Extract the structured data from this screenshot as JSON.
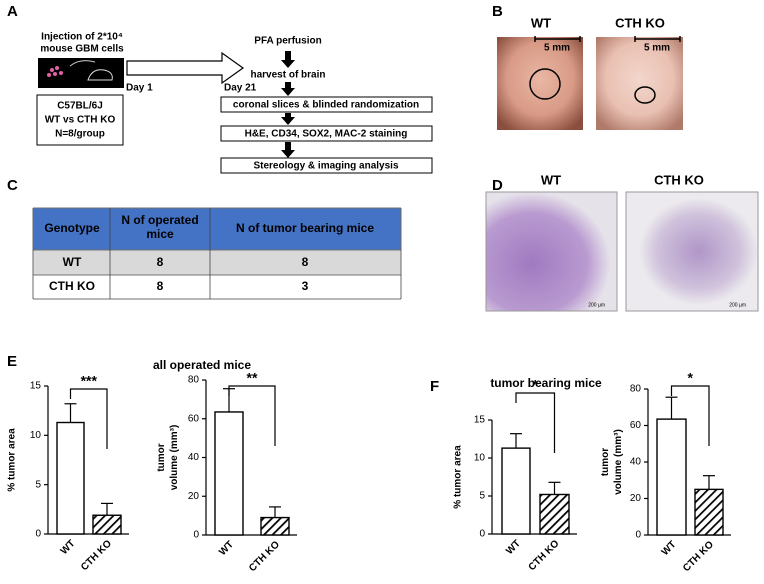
{
  "panel_labels": [
    "A",
    "B",
    "C",
    "D",
    "E",
    "F"
  ],
  "schematic": {
    "injection": [
      "Injection of 2*10⁴",
      "mouse GBM cells"
    ],
    "day_start": "Day 1",
    "cohort": [
      "C57BL/6J",
      "WT vs CTH KO",
      "N=8/group"
    ],
    "steps_top": [
      "PFA perfusion",
      "harvest of brain"
    ],
    "day_end": "Day 21",
    "steps": [
      "coronal slices & blinded randomization",
      "H&E, CD34, SOX2, MAC-2 staining",
      "Stereology & imaging analysis"
    ]
  },
  "photos": {
    "labels": [
      "WT",
      "CTH KO"
    ],
    "scale": "5 mm"
  },
  "table": {
    "header": [
      "Genotype",
      "N of operated mice",
      "N of tumor bearing mice"
    ],
    "rows": [
      [
        "WT",
        8,
        8
      ],
      [
        "CTH KO",
        8,
        3
      ]
    ]
  },
  "histology": {
    "labels": [
      "WT",
      "CTH KO"
    ],
    "scale": "200 µm"
  },
  "chart_data": [
    {
      "type": "bar",
      "title": "all operated mice",
      "ylabel": [
        "% tumor area"
      ],
      "categories": [
        "WT",
        "CTH KO"
      ],
      "values": [
        11.3,
        1.9
      ],
      "errors": [
        1.9,
        1.2
      ],
      "colors": [
        "#ffffff",
        "#000000"
      ],
      "hatched": [
        false,
        true
      ],
      "ylim": [
        0,
        15
      ],
      "yticks": [
        0,
        5,
        10,
        15
      ],
      "annotation": "***"
    },
    {
      "type": "bar",
      "ylabel": [
        "tumor",
        "volume (mm³)"
      ],
      "categories": [
        "WT",
        "CTH KO"
      ],
      "values": [
        63.5,
        9
      ],
      "errors": [
        12,
        5.5
      ],
      "colors": [
        "#ffffff",
        "#000000"
      ],
      "hatched": [
        false,
        true
      ],
      "ylim": [
        0,
        80
      ],
      "yticks": [
        0,
        20,
        40,
        60,
        80
      ],
      "annotation": "**"
    },
    {
      "type": "bar",
      "title": "tumor bearing mice",
      "ylabel": [
        "% tumor area"
      ],
      "categories": [
        "WT",
        "CTH KO"
      ],
      "values": [
        11.3,
        5.2
      ],
      "errors": [
        1.9,
        1.6
      ],
      "colors": [
        "#ffffff",
        "#000000"
      ],
      "hatched": [
        false,
        true
      ],
      "ylim": [
        0,
        15
      ],
      "yticks": [
        0,
        5,
        10,
        15
      ],
      "annotation": "*"
    },
    {
      "type": "bar",
      "ylabel": [
        "tumor",
        "volume (mm³)"
      ],
      "categories": [
        "WT",
        "CTH KO"
      ],
      "values": [
        63.5,
        25
      ],
      "errors": [
        12,
        7.5
      ],
      "colors": [
        "#ffffff",
        "#000000"
      ],
      "hatched": [
        false,
        true
      ],
      "ylim": [
        0,
        80
      ],
      "yticks": [
        0,
        20,
        40,
        60,
        80
      ],
      "annotation": "*"
    }
  ]
}
